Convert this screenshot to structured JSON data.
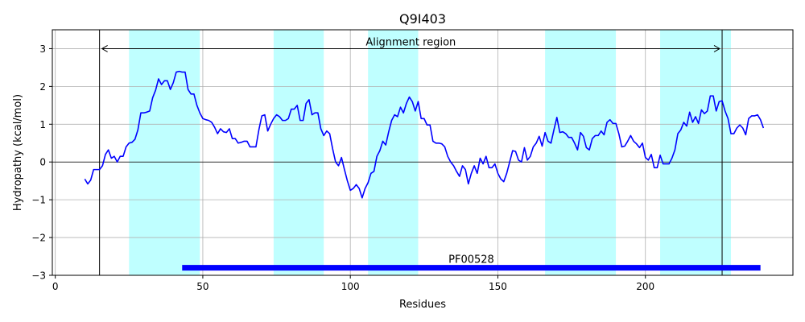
{
  "chart_data": {
    "type": "line",
    "title": "Q9I403",
    "xlabel": "Residues",
    "ylabel": "Hydropathy (kcal/mol)",
    "xlim": [
      -1,
      250
    ],
    "ylim": [
      -3,
      3.5
    ],
    "xticks": [
      0,
      50,
      100,
      150,
      200
    ],
    "yticks": [
      -3,
      -2,
      -1,
      0,
      1,
      2,
      3
    ],
    "grid": true,
    "line_color": "#0000ff",
    "band_color": "#bfffff",
    "domain_color": "#0000ff",
    "tm_regions": [
      [
        25,
        49
      ],
      [
        74,
        91
      ],
      [
        106,
        123
      ],
      [
        166,
        190
      ],
      [
        205,
        229
      ]
    ],
    "alignment_region": {
      "label": "Alignment region",
      "start": 15,
      "end": 226,
      "arrow_y": 3.0
    },
    "domain": {
      "label": "PF00528",
      "start": 43,
      "end": 239,
      "y": -2.8
    },
    "series": [
      {
        "x_start": 10,
        "values": [
          -0.45,
          -0.58,
          -0.48,
          -0.2,
          -0.2,
          -0.2,
          -0.1,
          0.2,
          0.32,
          0.1,
          0.15,
          0.0,
          0.15,
          0.15,
          0.4,
          0.5,
          0.52,
          0.6,
          0.85,
          1.3,
          1.3,
          1.32,
          1.35,
          1.7,
          1.9,
          2.2,
          2.05,
          2.15,
          2.15,
          1.92,
          2.1,
          2.38,
          2.4,
          2.38,
          2.38,
          1.92,
          1.8,
          1.8,
          1.5,
          1.3,
          1.15,
          1.12,
          1.1,
          1.05,
          0.92,
          0.75,
          0.88,
          0.8,
          0.78,
          0.88,
          0.62,
          0.62,
          0.5,
          0.52,
          0.55,
          0.55,
          0.4,
          0.4,
          0.4,
          0.85,
          1.22,
          1.25,
          0.82,
          1.0,
          1.15,
          1.25,
          1.2,
          1.1,
          1.1,
          1.15,
          1.4,
          1.4,
          1.5,
          1.1,
          1.1,
          1.55,
          1.65,
          1.25,
          1.3,
          1.3,
          0.88,
          0.7,
          0.82,
          0.75,
          0.35,
          0.0,
          -0.1,
          0.12,
          -0.2,
          -0.5,
          -0.75,
          -0.7,
          -0.6,
          -0.7,
          -0.95,
          -0.7,
          -0.55,
          -0.3,
          -0.25,
          0.15,
          0.3,
          0.55,
          0.45,
          0.8,
          1.1,
          1.25,
          1.2,
          1.45,
          1.3,
          1.55,
          1.72,
          1.6,
          1.35,
          1.6,
          1.15,
          1.15,
          0.98,
          0.98,
          0.55,
          0.5,
          0.5,
          0.48,
          0.4,
          0.15,
          0.0,
          -0.1,
          -0.25,
          -0.38,
          -0.1,
          -0.2,
          -0.58,
          -0.3,
          -0.1,
          -0.3,
          0.1,
          -0.05,
          0.15,
          -0.15,
          -0.15,
          -0.05,
          -0.3,
          -0.45,
          -0.52,
          -0.3,
          0.0,
          0.3,
          0.28,
          0.05,
          0.0,
          0.38,
          0.05,
          0.15,
          0.4,
          0.5,
          0.68,
          0.42,
          0.78,
          0.55,
          0.5,
          0.85,
          1.18,
          0.78,
          0.8,
          0.75,
          0.65,
          0.65,
          0.5,
          0.32,
          0.78,
          0.68,
          0.38,
          0.32,
          0.62,
          0.7,
          0.7,
          0.82,
          0.72,
          1.05,
          1.12,
          1.02,
          1.02,
          0.75,
          0.4,
          0.42,
          0.55,
          0.7,
          0.55,
          0.48,
          0.38,
          0.5,
          0.12,
          0.05,
          0.2,
          -0.15,
          -0.15,
          0.18,
          -0.05,
          -0.05,
          -0.05,
          0.1,
          0.32,
          0.75,
          0.85,
          1.05,
          0.95,
          1.32,
          1.05,
          1.2,
          1.02,
          1.38,
          1.28,
          1.35,
          1.75,
          1.75,
          1.35,
          1.6,
          1.62,
          1.35,
          1.15,
          0.75,
          0.75,
          0.9,
          0.98,
          0.9,
          0.72,
          1.15,
          1.22,
          1.22,
          1.25,
          1.12,
          0.9
        ]
      }
    ]
  }
}
